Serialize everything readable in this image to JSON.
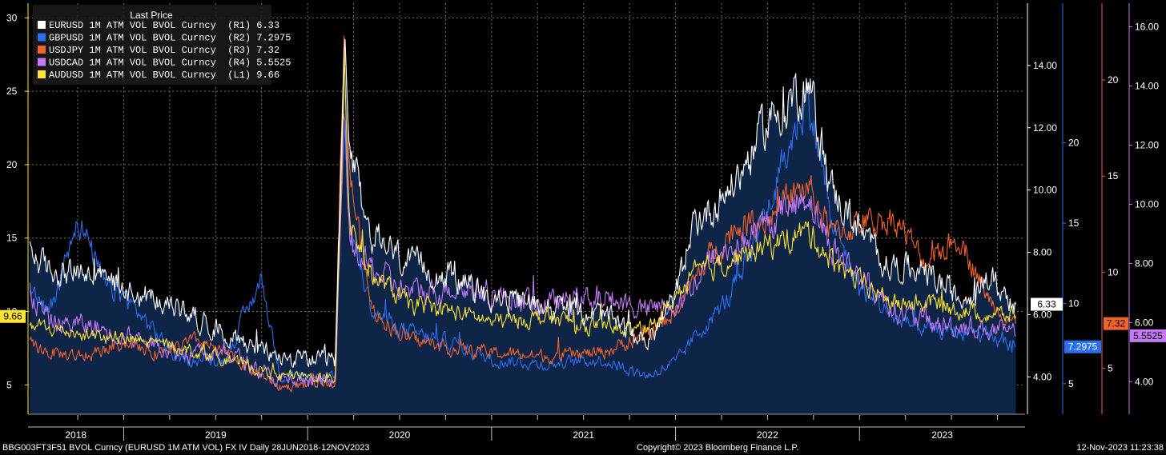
{
  "chart_data": {
    "type": "line",
    "legend_title": "Last Price",
    "legend_placement": "top-left",
    "grid": true,
    "x_categories": [
      "2018",
      "2019",
      "2020",
      "2021",
      "2022",
      "2023"
    ],
    "x_range": [
      "2018-06-28",
      "2023-11-12"
    ],
    "axes": {
      "L1": {
        "min": 3,
        "max": 31,
        "ticks": [
          5,
          10,
          15,
          20,
          25,
          30
        ],
        "color": "#ffe433"
      },
      "R1": {
        "min": 2.8,
        "max": 16,
        "ticks": [
          "4.00",
          "6.00",
          "8.00",
          "10.00",
          "12.00",
          "14.00"
        ],
        "color": "#ffffff"
      },
      "R2": {
        "min": 3.1,
        "max": 28.7,
        "ticks": [
          5,
          10,
          15,
          20
        ],
        "color": "#2a6ff0"
      },
      "R3": {
        "min": 2.6,
        "max": 24,
        "ticks": [
          5,
          10,
          15,
          20
        ],
        "color": "#f2622b"
      },
      "R4": {
        "min": 2.9,
        "max": 16.8,
        "ticks": [
          "4.00",
          "6.00",
          "8.00",
          "10.00",
          "12.00",
          "14.00",
          "16.00"
        ],
        "color": "#c37af5"
      }
    },
    "series": [
      {
        "name": "EURUSD 1M ATM VOL BVOL Curncy",
        "axis": "R1",
        "last": "6.33",
        "color": "#ffffff",
        "x": [
          2018.49,
          2018.6,
          2018.8,
          2019.0,
          2019.3,
          2019.6,
          2019.85,
          2020.15,
          2020.2,
          2020.23,
          2020.35,
          2020.55,
          2020.8,
          2021.0,
          2021.3,
          2021.6,
          2021.85,
          2022.0,
          2022.1,
          2022.2,
          2022.35,
          2022.5,
          2022.72,
          2022.85,
          2023.0,
          2023.15,
          2023.35,
          2023.55,
          2023.7,
          2023.85
        ],
        "y": [
          8.0,
          7.4,
          7.3,
          6.9,
          6.2,
          5.3,
          4.6,
          4.5,
          14.5,
          11.0,
          8.5,
          7.6,
          7.2,
          6.5,
          6.3,
          6.0,
          5.1,
          6.6,
          9.0,
          9.4,
          10.5,
          12.2,
          13.5,
          10.0,
          8.7,
          7.6,
          7.4,
          6.5,
          7.2,
          6.33
        ]
      },
      {
        "name": "GBPUSD 1M ATM VOL BVOL Curncy",
        "axis": "R2",
        "last": "7.2975",
        "color": "#2a6ff0",
        "x": [
          2018.49,
          2018.6,
          2018.75,
          2018.9,
          2019.0,
          2019.15,
          2019.3,
          2019.55,
          2019.75,
          2019.85,
          2020.15,
          2020.2,
          2020.23,
          2020.35,
          2020.55,
          2020.8,
          2021.0,
          2021.3,
          2021.6,
          2021.85,
          2022.0,
          2022.1,
          2022.3,
          2022.5,
          2022.72,
          2022.85,
          2023.0,
          2023.2,
          2023.4,
          2023.6,
          2023.85
        ],
        "y": [
          10.5,
          9.5,
          15.5,
          11.0,
          10.5,
          8.5,
          6.5,
          6.5,
          11.5,
          5.5,
          5.3,
          21.5,
          15.0,
          9.5,
          8.2,
          7.5,
          6.5,
          6.2,
          6.5,
          5.5,
          6.3,
          7.8,
          10.5,
          16.0,
          23.0,
          15.0,
          11.0,
          9.0,
          8.3,
          8.2,
          7.2975
        ]
      },
      {
        "name": "USDJPY 1M ATM VOL BVOL Curncy",
        "axis": "R3",
        "last": "7.32",
        "color": "#f2622b",
        "x": [
          2018.49,
          2018.6,
          2018.8,
          2019.0,
          2019.15,
          2019.4,
          2019.6,
          2019.85,
          2020.15,
          2020.2,
          2020.23,
          2020.35,
          2020.55,
          2020.8,
          2021.0,
          2021.3,
          2021.6,
          2021.85,
          2022.0,
          2022.1,
          2022.2,
          2022.35,
          2022.5,
          2022.72,
          2022.85,
          2023.0,
          2023.2,
          2023.35,
          2023.55,
          2023.7,
          2023.85
        ],
        "y": [
          6.2,
          5.8,
          5.6,
          6.4,
          5.8,
          6.4,
          5.5,
          4.0,
          4.3,
          23.5,
          15.0,
          8.0,
          6.5,
          6.0,
          5.8,
          5.6,
          5.8,
          6.8,
          8.0,
          9.5,
          11.0,
          12.5,
          12.8,
          14.5,
          12.0,
          12.5,
          12.8,
          10.5,
          11.8,
          8.6,
          7.32
        ]
      },
      {
        "name": "USDCAD 1M ATM VOL BVOL Curncy",
        "axis": "R4",
        "last": "5.5525",
        "color": "#c37af5",
        "x": [
          2018.49,
          2018.6,
          2018.8,
          2019.0,
          2019.3,
          2019.6,
          2019.85,
          2020.15,
          2020.2,
          2020.23,
          2020.35,
          2020.55,
          2020.8,
          2021.0,
          2021.3,
          2021.6,
          2021.85,
          2022.0,
          2022.1,
          2022.2,
          2022.35,
          2022.5,
          2022.72,
          2022.85,
          2023.0,
          2023.2,
          2023.4,
          2023.6,
          2023.85
        ],
        "y": [
          7.0,
          6.0,
          5.9,
          5.6,
          5.0,
          4.9,
          4.0,
          4.0,
          13.0,
          8.5,
          7.8,
          7.0,
          7.2,
          7.0,
          6.6,
          6.9,
          6.4,
          6.6,
          7.3,
          8.2,
          8.6,
          9.3,
          10.4,
          8.5,
          7.6,
          6.4,
          5.9,
          5.9,
          5.5525
        ]
      },
      {
        "name": "AUDUSD 1M ATM VOL BVOL Curncy",
        "axis": "L1",
        "last": "9.66",
        "color": "#ffe433",
        "x": [
          2018.49,
          2018.6,
          2018.8,
          2019.0,
          2019.3,
          2019.6,
          2019.85,
          2020.15,
          2020.2,
          2020.23,
          2020.35,
          2020.55,
          2020.8,
          2021.0,
          2021.3,
          2021.6,
          2021.85,
          2022.0,
          2022.1,
          2022.2,
          2022.35,
          2022.5,
          2022.72,
          2022.85,
          2023.0,
          2023.2,
          2023.4,
          2023.6,
          2023.85
        ],
        "y": [
          9.0,
          8.8,
          8.5,
          8.1,
          7.6,
          6.6,
          5.6,
          5.5,
          27.5,
          16.0,
          12.5,
          10.5,
          10.0,
          9.3,
          9.6,
          8.9,
          8.6,
          11.0,
          12.5,
          13.0,
          13.8,
          14.5,
          15.5,
          13.5,
          12.0,
          10.5,
          10.6,
          10.0,
          9.66
        ]
      }
    ]
  },
  "footer": {
    "left": "BBG003FT3F51 BVOL Curncy (EURUSD 1M ATM VOL) FX IV  Daily 28JUN2018-12NOV2023",
    "center": "Copyright© 2023 Bloomberg Finance L.P.",
    "right": "12-Nov-2023 11:23:38"
  }
}
